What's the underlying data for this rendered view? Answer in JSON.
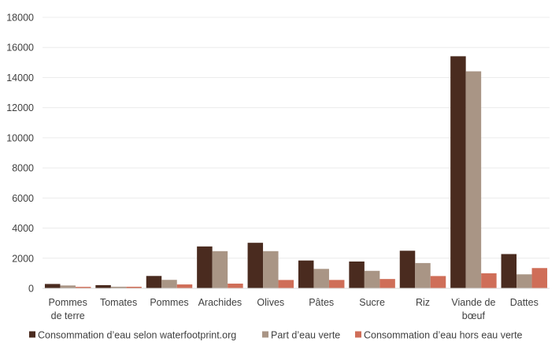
{
  "chart_data": {
    "type": "bar",
    "title": "",
    "xlabel": "",
    "ylabel": "",
    "ylim": [
      0,
      18000
    ],
    "yticks": [
      0,
      2000,
      4000,
      6000,
      8000,
      10000,
      12000,
      14000,
      16000,
      18000
    ],
    "grid": true,
    "legend_position": "bottom",
    "categories": [
      [
        "Pommes",
        "de terre"
      ],
      [
        "Tomates"
      ],
      [
        "Pommes"
      ],
      [
        "Arachides"
      ],
      [
        "Olives"
      ],
      [
        "Pâtes"
      ],
      [
        "Sucre"
      ],
      [
        "Riz"
      ],
      [
        "Viande de",
        "bœuf"
      ],
      [
        "Dattes"
      ]
    ],
    "series": [
      {
        "name": "Consommation d’eau selon waterfootprint.org",
        "color": "#4a2b1f",
        "values": [
          290,
          214,
          822,
          2782,
          3025,
          1849,
          1782,
          2497,
          15415,
          2277
        ]
      },
      {
        "name": "Part d’eau verte",
        "color": "#a99585",
        "values": [
          191,
          108,
          563,
          2469,
          2470,
          1292,
          1162,
          1680,
          14414,
          930
        ]
      },
      {
        "name": "Consommation d’eau hors eau verte",
        "color": "#cf6e58",
        "values": [
          99,
          106,
          259,
          313,
          555,
          557,
          620,
          817,
          1001,
          1347
        ]
      }
    ]
  }
}
